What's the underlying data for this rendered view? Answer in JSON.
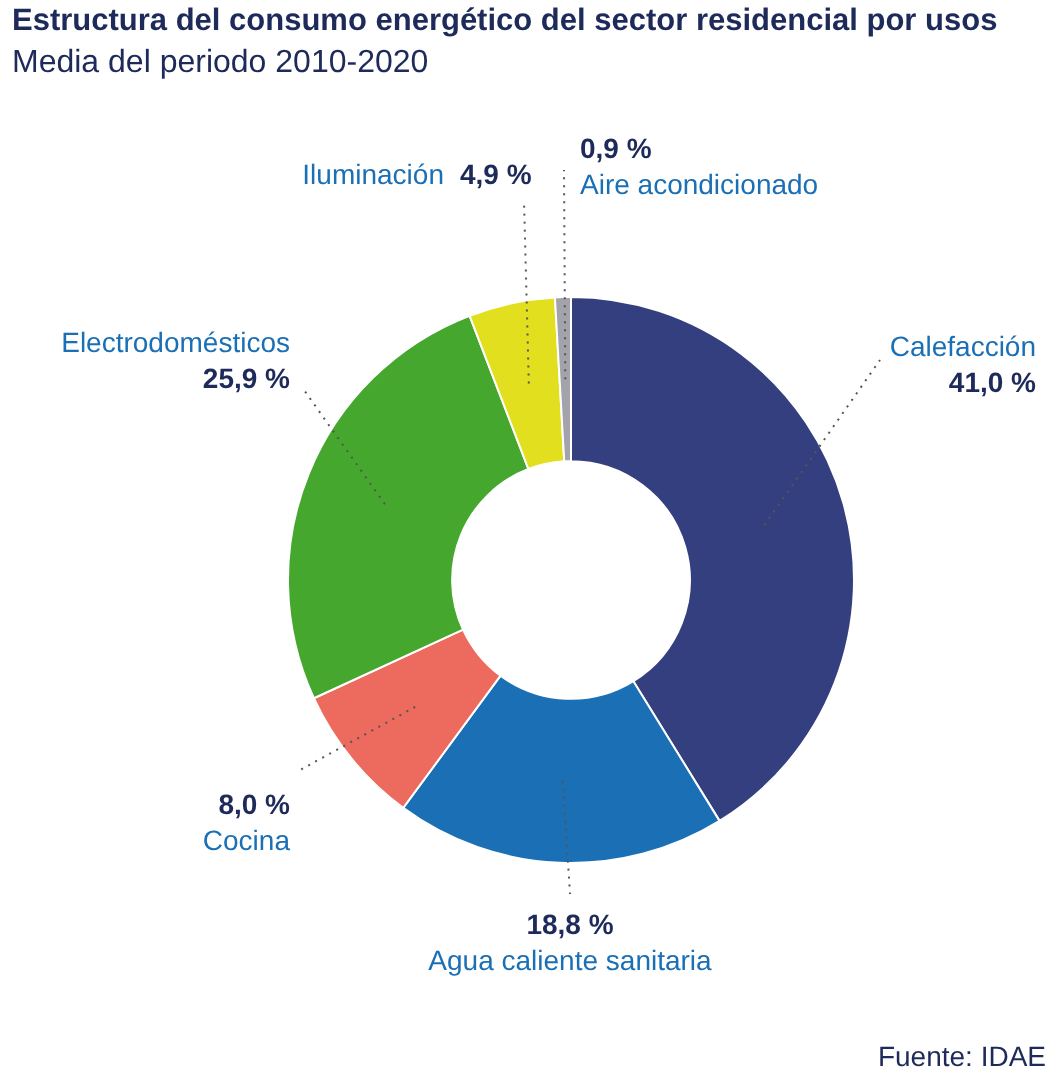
{
  "chart_data": {
    "type": "donut",
    "title": "Estructura del consumo energético del sector residencial por usos",
    "subtitle": "Media del periodo 2010-2020",
    "categories": [
      "Calefacción",
      "Agua caliente sanitaria",
      "Cocina",
      "Electrodomésticos",
      "Iluminación",
      "Aire acondicionado"
    ],
    "values": [
      41.0,
      18.8,
      8.0,
      25.9,
      4.9,
      0.9
    ],
    "value_labels": [
      "41,0 %",
      "18,8 %",
      "8,0 %",
      "25,9 %",
      "4,9 %",
      "0,9 %"
    ],
    "colors": [
      "#333f7e",
      "#1a6fb5",
      "#ec6b5e",
      "#45a72e",
      "#e2df1f",
      "#a3a3ab"
    ],
    "legend": false,
    "annotations": [
      "Fuente: IDAE"
    ]
  }
}
